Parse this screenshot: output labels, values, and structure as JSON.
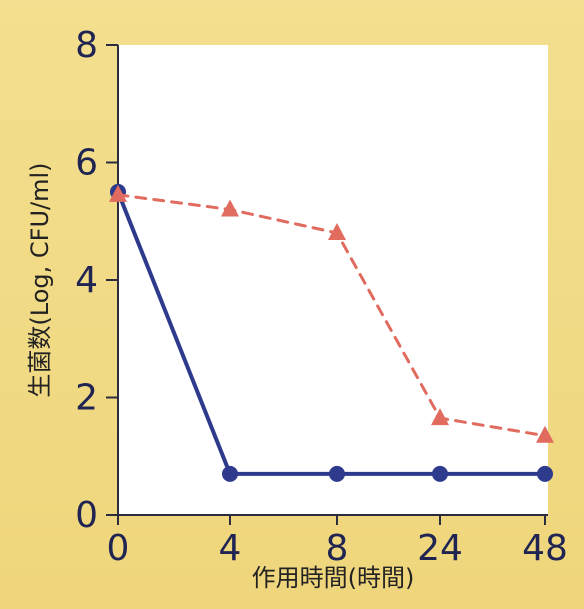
{
  "chart_data": {
    "type": "line",
    "xlabel": "作用時間(時間)",
    "ylabel": "生菌数(Log, CFU/ml)",
    "categories": [
      "0",
      "4",
      "8",
      "24",
      "48"
    ],
    "ylim": [
      0,
      8
    ],
    "yticks": [
      "0",
      "2",
      "4",
      "6",
      "8"
    ],
    "grid": false,
    "legend": "none",
    "series": [
      {
        "values": [
          5.5,
          0.7,
          0.7,
          0.7,
          0.7
        ],
        "color": "#2e3a8c",
        "marker": "circle",
        "line_style": "solid"
      },
      {
        "values": [
          5.45,
          5.2,
          4.8,
          1.65,
          1.35
        ],
        "color": "#e06b5e",
        "marker": "triangle",
        "line_style": "dashed"
      }
    ]
  }
}
